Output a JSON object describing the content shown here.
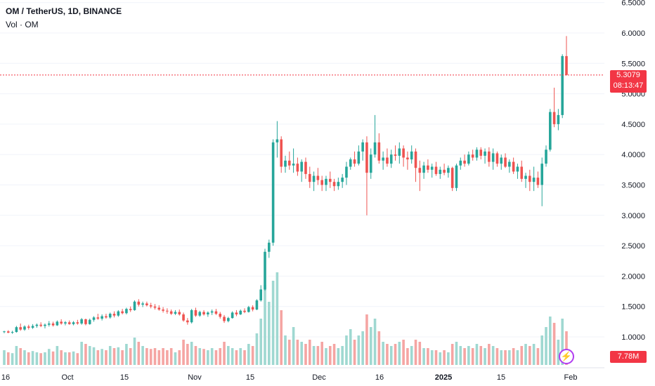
{
  "header": {
    "title": "OM / TetherUS, 1D, BINANCE",
    "volume_label": "Vol · OM"
  },
  "price_tag": {
    "price": "5.3079",
    "countdown": "08:13:47"
  },
  "volume_tag": "7.78M",
  "colors": {
    "up": "#26a69a",
    "down": "#ef5350",
    "up_vol": "#9fd8d1",
    "down_vol": "#f5a5a3",
    "price_line": "#f23645",
    "grid": "#f0f3fa"
  },
  "icons": {
    "alert": "lightning-icon"
  },
  "chart_data": {
    "type": "candlestick",
    "title": "OM / TetherUS, 1D, BINANCE",
    "ylim": [
      0.6,
      6.5
    ],
    "y_ticks": [
      "6.5000",
      "6.0000",
      "5.5000",
      "5.0000",
      "4.5000",
      "4.0000",
      "3.5000",
      "3.0000",
      "2.5000",
      "2.0000",
      "1.5000",
      "1.0000"
    ],
    "x_ticks": [
      "16",
      "Oct",
      "15",
      "Nov",
      "15",
      "Dec",
      "16",
      "2025",
      "15",
      "Feb"
    ],
    "last_price": 5.3079,
    "volume_last": "7.78M",
    "candles": [
      [
        1.08,
        1.1,
        1.06,
        1.09,
        0.35
      ],
      [
        1.09,
        1.11,
        1.06,
        1.07,
        0.3
      ],
      [
        1.07,
        1.1,
        1.05,
        1.08,
        0.28
      ],
      [
        1.08,
        1.18,
        1.07,
        1.16,
        0.45
      ],
      [
        1.16,
        1.22,
        1.1,
        1.12,
        0.4
      ],
      [
        1.12,
        1.19,
        1.1,
        1.17,
        0.35
      ],
      [
        1.17,
        1.2,
        1.12,
        1.15,
        0.3
      ],
      [
        1.15,
        1.21,
        1.13,
        1.18,
        0.33
      ],
      [
        1.18,
        1.22,
        1.15,
        1.2,
        0.3
      ],
      [
        1.2,
        1.24,
        1.16,
        1.18,
        0.28
      ],
      [
        1.18,
        1.22,
        1.14,
        1.2,
        0.3
      ],
      [
        1.2,
        1.26,
        1.17,
        1.22,
        0.38
      ],
      [
        1.22,
        1.25,
        1.17,
        1.19,
        0.32
      ],
      [
        1.19,
        1.27,
        1.18,
        1.25,
        0.45
      ],
      [
        1.25,
        1.29,
        1.2,
        1.22,
        0.35
      ],
      [
        1.22,
        1.26,
        1.19,
        1.24,
        0.3
      ],
      [
        1.24,
        1.27,
        1.2,
        1.21,
        0.3
      ],
      [
        1.21,
        1.26,
        1.19,
        1.24,
        0.32
      ],
      [
        1.24,
        1.28,
        1.2,
        1.22,
        0.28
      ],
      [
        1.22,
        1.31,
        1.2,
        1.29,
        0.55
      ],
      [
        1.29,
        1.3,
        1.19,
        1.21,
        0.5
      ],
      [
        1.21,
        1.3,
        1.2,
        1.28,
        0.45
      ],
      [
        1.28,
        1.34,
        1.25,
        1.32,
        0.42
      ],
      [
        1.32,
        1.38,
        1.28,
        1.3,
        0.35
      ],
      [
        1.3,
        1.37,
        1.27,
        1.34,
        0.38
      ],
      [
        1.34,
        1.38,
        1.3,
        1.32,
        0.35
      ],
      [
        1.32,
        1.4,
        1.3,
        1.38,
        0.45
      ],
      [
        1.38,
        1.42,
        1.32,
        1.35,
        0.4
      ],
      [
        1.35,
        1.44,
        1.33,
        1.42,
        0.42
      ],
      [
        1.42,
        1.46,
        1.37,
        1.39,
        0.35
      ],
      [
        1.39,
        1.48,
        1.37,
        1.46,
        0.5
      ],
      [
        1.46,
        1.5,
        1.41,
        1.44,
        0.4
      ],
      [
        1.44,
        1.6,
        1.43,
        1.58,
        0.65
      ],
      [
        1.58,
        1.62,
        1.5,
        1.53,
        0.55
      ],
      [
        1.53,
        1.58,
        1.49,
        1.55,
        0.45
      ],
      [
        1.55,
        1.58,
        1.5,
        1.52,
        0.4
      ],
      [
        1.52,
        1.56,
        1.47,
        1.5,
        0.38
      ],
      [
        1.5,
        1.54,
        1.45,
        1.48,
        0.4
      ],
      [
        1.48,
        1.52,
        1.43,
        1.45,
        0.35
      ],
      [
        1.45,
        1.49,
        1.4,
        1.43,
        0.4
      ],
      [
        1.43,
        1.47,
        1.38,
        1.42,
        0.35
      ],
      [
        1.42,
        1.45,
        1.36,
        1.38,
        0.4
      ],
      [
        1.38,
        1.44,
        1.36,
        1.41,
        0.3
      ],
      [
        1.41,
        1.45,
        1.35,
        1.37,
        0.35
      ],
      [
        1.37,
        1.4,
        1.25,
        1.27,
        0.6
      ],
      [
        1.27,
        1.31,
        1.2,
        1.24,
        0.5
      ],
      [
        1.24,
        1.46,
        1.22,
        1.44,
        0.55
      ],
      [
        1.44,
        1.48,
        1.33,
        1.35,
        0.45
      ],
      [
        1.35,
        1.43,
        1.33,
        1.41,
        0.4
      ],
      [
        1.41,
        1.44,
        1.35,
        1.37,
        0.38
      ],
      [
        1.37,
        1.42,
        1.33,
        1.4,
        0.35
      ],
      [
        1.4,
        1.45,
        1.36,
        1.42,
        0.4
      ],
      [
        1.42,
        1.46,
        1.36,
        1.38,
        0.35
      ],
      [
        1.38,
        1.41,
        1.3,
        1.33,
        0.4
      ],
      [
        1.33,
        1.36,
        1.23,
        1.26,
        0.55
      ],
      [
        1.26,
        1.33,
        1.24,
        1.31,
        0.45
      ],
      [
        1.31,
        1.42,
        1.3,
        1.4,
        0.4
      ],
      [
        1.4,
        1.44,
        1.34,
        1.37,
        0.35
      ],
      [
        1.37,
        1.45,
        1.36,
        1.43,
        0.4
      ],
      [
        1.43,
        1.47,
        1.39,
        1.41,
        0.35
      ],
      [
        1.41,
        1.51,
        1.4,
        1.49,
        0.5
      ],
      [
        1.49,
        1.52,
        1.42,
        1.45,
        0.45
      ],
      [
        1.45,
        1.62,
        1.44,
        1.6,
        0.75
      ],
      [
        1.6,
        1.85,
        1.58,
        1.78,
        1.1
      ],
      [
        1.78,
        2.45,
        1.76,
        2.4,
        1.9
      ],
      [
        2.4,
        2.6,
        2.3,
        2.55,
        1.5
      ],
      [
        2.55,
        4.25,
        2.5,
        4.2,
        2.0
      ],
      [
        4.2,
        4.55,
        3.95,
        4.25,
        2.2
      ],
      [
        4.25,
        4.3,
        3.7,
        3.8,
        1.3
      ],
      [
        3.8,
        3.98,
        3.7,
        3.9,
        0.7
      ],
      [
        3.9,
        4.05,
        3.75,
        3.82,
        0.6
      ],
      [
        3.82,
        4.1,
        3.7,
        3.85,
        0.9
      ],
      [
        3.85,
        3.95,
        3.65,
        3.72,
        0.6
      ],
      [
        3.72,
        3.92,
        3.55,
        3.88,
        0.55
      ],
      [
        3.88,
        3.95,
        3.6,
        3.68,
        0.5
      ],
      [
        3.68,
        3.8,
        3.45,
        3.55,
        0.6
      ],
      [
        3.55,
        3.72,
        3.4,
        3.65,
        0.45
      ],
      [
        3.65,
        3.78,
        3.5,
        3.58,
        0.45
      ],
      [
        3.58,
        3.65,
        3.4,
        3.5,
        0.55
      ],
      [
        3.5,
        3.65,
        3.4,
        3.6,
        0.4
      ],
      [
        3.6,
        3.72,
        3.45,
        3.55,
        0.45
      ],
      [
        3.55,
        3.6,
        3.4,
        3.48,
        0.5
      ],
      [
        3.48,
        3.62,
        3.42,
        3.55,
        0.4
      ],
      [
        3.55,
        3.68,
        3.45,
        3.62,
        0.45
      ],
      [
        3.62,
        3.88,
        3.5,
        3.8,
        0.7
      ],
      [
        3.8,
        3.95,
        3.75,
        3.92,
        0.85
      ],
      [
        3.92,
        4.05,
        3.8,
        3.85,
        0.6
      ],
      [
        3.85,
        4.15,
        3.82,
        4.05,
        0.7
      ],
      [
        4.05,
        4.25,
        3.9,
        4.2,
        0.8
      ],
      [
        4.2,
        4.3,
        3.0,
        3.7,
        1.2
      ],
      [
        3.7,
        4.1,
        3.6,
        4.0,
        0.9
      ],
      [
        4.0,
        4.65,
        3.95,
        4.2,
        1.1
      ],
      [
        4.2,
        4.35,
        3.85,
        3.9,
        0.8
      ],
      [
        3.9,
        4.05,
        3.75,
        3.95,
        0.55
      ],
      [
        3.95,
        4.1,
        3.8,
        3.85,
        0.5
      ],
      [
        3.85,
        4.08,
        3.78,
        4.0,
        0.45
      ],
      [
        4.0,
        4.15,
        3.9,
        3.98,
        0.5
      ],
      [
        3.98,
        4.2,
        3.85,
        4.1,
        0.55
      ],
      [
        4.1,
        4.15,
        3.8,
        3.95,
        0.6
      ],
      [
        3.95,
        4.05,
        3.75,
        3.92,
        0.4
      ],
      [
        3.92,
        4.15,
        3.85,
        4.05,
        0.45
      ],
      [
        4.05,
        4.1,
        3.55,
        3.78,
        0.6
      ],
      [
        3.78,
        3.9,
        3.4,
        3.7,
        0.55
      ],
      [
        3.7,
        3.88,
        3.6,
        3.82,
        0.4
      ],
      [
        3.82,
        3.92,
        3.7,
        3.75,
        0.4
      ],
      [
        3.75,
        3.85,
        3.62,
        3.8,
        0.35
      ],
      [
        3.8,
        3.88,
        3.65,
        3.68,
        0.35
      ],
      [
        3.68,
        3.8,
        3.6,
        3.75,
        0.3
      ],
      [
        3.75,
        3.85,
        3.66,
        3.7,
        0.35
      ],
      [
        3.7,
        3.82,
        3.62,
        3.78,
        0.3
      ],
      [
        3.78,
        3.8,
        3.4,
        3.45,
        0.5
      ],
      [
        3.45,
        3.85,
        3.4,
        3.82,
        0.55
      ],
      [
        3.82,
        3.95,
        3.75,
        3.9,
        0.45
      ],
      [
        3.9,
        4.0,
        3.8,
        3.85,
        0.4
      ],
      [
        3.85,
        4.05,
        3.82,
        4.0,
        0.45
      ],
      [
        4.0,
        4.08,
        3.9,
        3.95,
        0.4
      ],
      [
        3.95,
        4.12,
        3.9,
        4.08,
        0.5
      ],
      [
        4.08,
        4.12,
        3.92,
        3.98,
        0.45
      ],
      [
        3.98,
        4.1,
        3.85,
        4.05,
        0.4
      ],
      [
        4.05,
        4.12,
        3.8,
        3.88,
        0.5
      ],
      [
        3.88,
        4.1,
        3.75,
        4.02,
        0.45
      ],
      [
        4.02,
        4.05,
        3.8,
        3.85,
        0.4
      ],
      [
        3.85,
        4.0,
        3.75,
        3.95,
        0.35
      ],
      [
        3.95,
        4.02,
        3.78,
        3.8,
        0.35
      ],
      [
        3.8,
        3.92,
        3.7,
        3.88,
        0.35
      ],
      [
        3.88,
        3.95,
        3.68,
        3.72,
        0.4
      ],
      [
        3.72,
        3.85,
        3.6,
        3.8,
        0.35
      ],
      [
        3.8,
        3.9,
        3.55,
        3.6,
        0.45
      ],
      [
        3.6,
        3.7,
        3.45,
        3.65,
        0.5
      ],
      [
        3.65,
        3.75,
        3.4,
        3.55,
        0.45
      ],
      [
        3.55,
        3.8,
        3.4,
        3.62,
        0.5
      ],
      [
        3.62,
        3.72,
        3.45,
        3.5,
        0.4
      ],
      [
        3.5,
        3.95,
        3.15,
        3.85,
        0.7
      ],
      [
        3.85,
        4.15,
        3.8,
        4.08,
        0.9
      ],
      [
        4.08,
        4.75,
        4.05,
        4.7,
        1.15
      ],
      [
        4.7,
        5.1,
        4.45,
        4.5,
        1.0
      ],
      [
        4.5,
        4.75,
        4.4,
        4.65,
        0.6
      ],
      [
        4.65,
        5.65,
        4.6,
        5.62,
        1.1
      ],
      [
        5.62,
        5.95,
        5.3,
        5.31,
        0.8
      ]
    ]
  }
}
